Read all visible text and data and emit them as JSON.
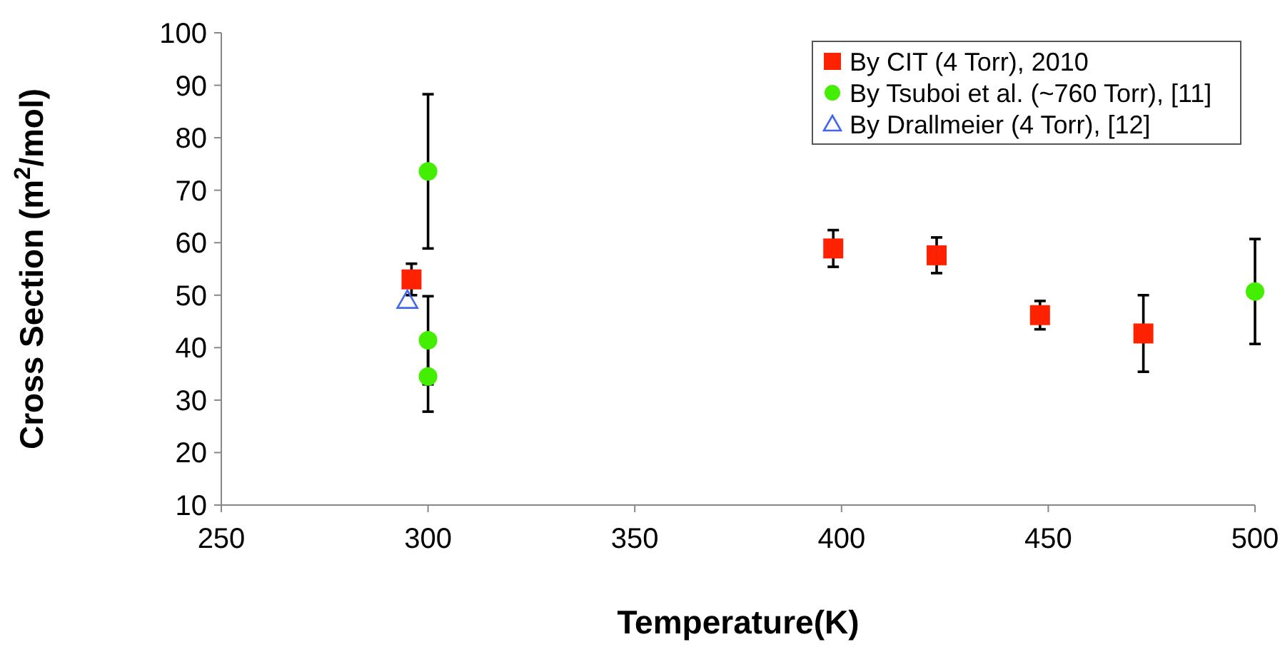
{
  "chart_data": {
    "type": "scatter",
    "xlabel": "Temperature(K)",
    "ylabel": "Cross Section (m$^{2}$/mol)",
    "xlim": [
      250,
      500
    ],
    "xticks": [
      250,
      300,
      350,
      400,
      450,
      500
    ],
    "ylim": [
      10,
      100
    ],
    "yticks": [
      10,
      20,
      30,
      40,
      50,
      60,
      70,
      80,
      90,
      100
    ],
    "grid": false,
    "legend": "top right",
    "series": [
      {
        "name": "By CIT (4 Torr), 2010",
        "color": "#ff2200",
        "marker": "square",
        "x": [
          296,
          398,
          423,
          448,
          473
        ],
        "values": [
          53,
          58.9,
          57.6,
          46.2,
          42.7
        ],
        "errors": [
          3,
          3.5,
          3.4,
          2.7,
          7.3
        ]
      },
      {
        "name": "By Tsuboi et al. (~760 Torr), [11]",
        "color": "#44ee00",
        "marker": "circle",
        "x": [
          300,
          300,
          300,
          500
        ],
        "values": [
          73.6,
          41.4,
          34.5,
          50.7
        ],
        "errors": [
          14.7,
          8.4,
          6.7,
          10
        ]
      },
      {
        "name": "By Drallmeier (4 Torr), [12]",
        "color": "#4466ee",
        "marker": "triangle",
        "x": [
          295
        ],
        "values": [
          49
        ]
      }
    ]
  }
}
